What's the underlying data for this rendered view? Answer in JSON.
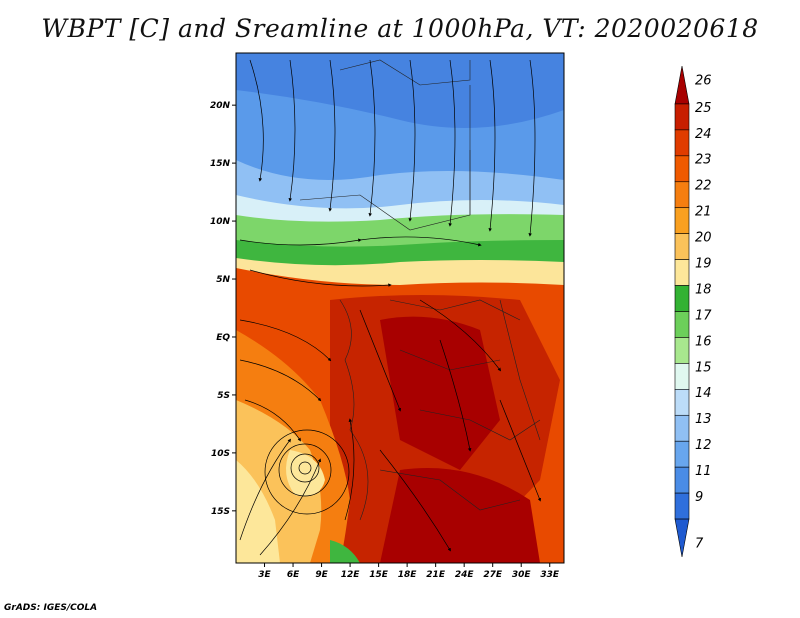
{
  "title": "WBPT [C] and Sreamline at 1000hPa, VT: 2020020618",
  "footer": "GrADS: IGES/COLA",
  "map": {
    "lon_range": [
      0,
      34.5
    ],
    "lat_range": [
      -19.5,
      24.5
    ],
    "x_ticks": [
      "3E",
      "6E",
      "9E",
      "12E",
      "15E",
      "18E",
      "21E",
      "24E",
      "27E",
      "30E",
      "33E"
    ],
    "x_tick_values": [
      3,
      6,
      9,
      12,
      15,
      18,
      21,
      24,
      27,
      30,
      33
    ],
    "y_ticks": [
      "20N",
      "15N",
      "10N",
      "5N",
      "EQ",
      "5S",
      "10S",
      "15S"
    ],
    "y_tick_values": [
      20,
      15,
      10,
      5,
      0,
      -5,
      -10,
      -15
    ],
    "cyclone_center": {
      "lon": 7.5,
      "lat": -11.5
    }
  },
  "colorbar": {
    "labels": [
      "26",
      "25",
      "24",
      "23",
      "22",
      "21",
      "20",
      "19",
      "18",
      "17",
      "16",
      "15",
      "14",
      "13",
      "12",
      "11",
      "9",
      "7"
    ],
    "colors": [
      "#a80000",
      "#c81e00",
      "#e03c00",
      "#f05a00",
      "#f57e10",
      "#f9a020",
      "#fbc25a",
      "#fde79a",
      "#33b233",
      "#6ccf5a",
      "#a8e88e",
      "#e0f8f0",
      "#bcdcf8",
      "#90c0f4",
      "#68a6ee",
      "#4a8ce6",
      "#2f6fdc",
      "#1f5ad0"
    ]
  }
}
